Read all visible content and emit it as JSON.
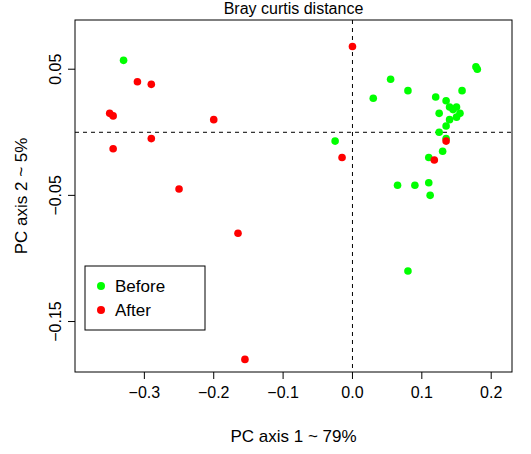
{
  "chart_data": {
    "type": "scatter",
    "title": "Bray curtis distance",
    "x_label": "PC axis 1 ~ 79%",
    "y_label": "PC axis 2 ~ 5%",
    "xlim": [
      -0.4,
      0.23
    ],
    "ylim": [
      -0.19,
      0.089
    ],
    "xticks": [
      -0.3,
      -0.2,
      -0.1,
      {
        "value": 0,
        "label": "0.0"
      },
      0.1,
      0.2
    ],
    "yticks": [
      -0.15,
      -0.05,
      0.05
    ],
    "reference_lines": {
      "x": [
        0
      ],
      "y": [
        0
      ]
    },
    "legend": "bottom-left",
    "grid": false,
    "marker": "circle",
    "series": [
      {
        "name": "Before",
        "color": "#00ff00",
        "x": [
          -0.33,
          -0.025,
          0.03,
          0.055,
          0.08,
          0.065,
          0.09,
          0.11,
          0.11,
          0.112,
          0.08,
          0.12,
          0.125,
          0.125,
          0.13,
          0.135,
          0.14,
          0.145,
          0.15,
          0.155,
          0.14,
          0.15,
          0.135,
          0.158,
          0.178,
          0.18,
          0.135
        ],
        "values": [
          0.057,
          -0.007,
          0.027,
          0.042,
          0.033,
          -0.042,
          -0.042,
          -0.02,
          -0.04,
          -0.05,
          -0.11,
          0.028,
          0.015,
          0.0,
          -0.015,
          0.025,
          0.02,
          0.018,
          0.02,
          0.015,
          0.01,
          0.012,
          0.005,
          0.033,
          0.052,
          0.05,
          -0.005
        ]
      },
      {
        "name": "After",
        "color": "#ff0000",
        "x": [
          -0.35,
          -0.345,
          -0.345,
          -0.31,
          -0.29,
          -0.29,
          -0.2,
          -0.25,
          -0.165,
          -0.155,
          -0.015,
          0.0,
          0.135,
          0.118
        ],
        "values": [
          0.015,
          0.013,
          -0.013,
          0.04,
          0.038,
          -0.005,
          0.01,
          -0.045,
          -0.08,
          -0.18,
          -0.02,
          0.068,
          -0.007,
          -0.022
        ]
      }
    ]
  }
}
